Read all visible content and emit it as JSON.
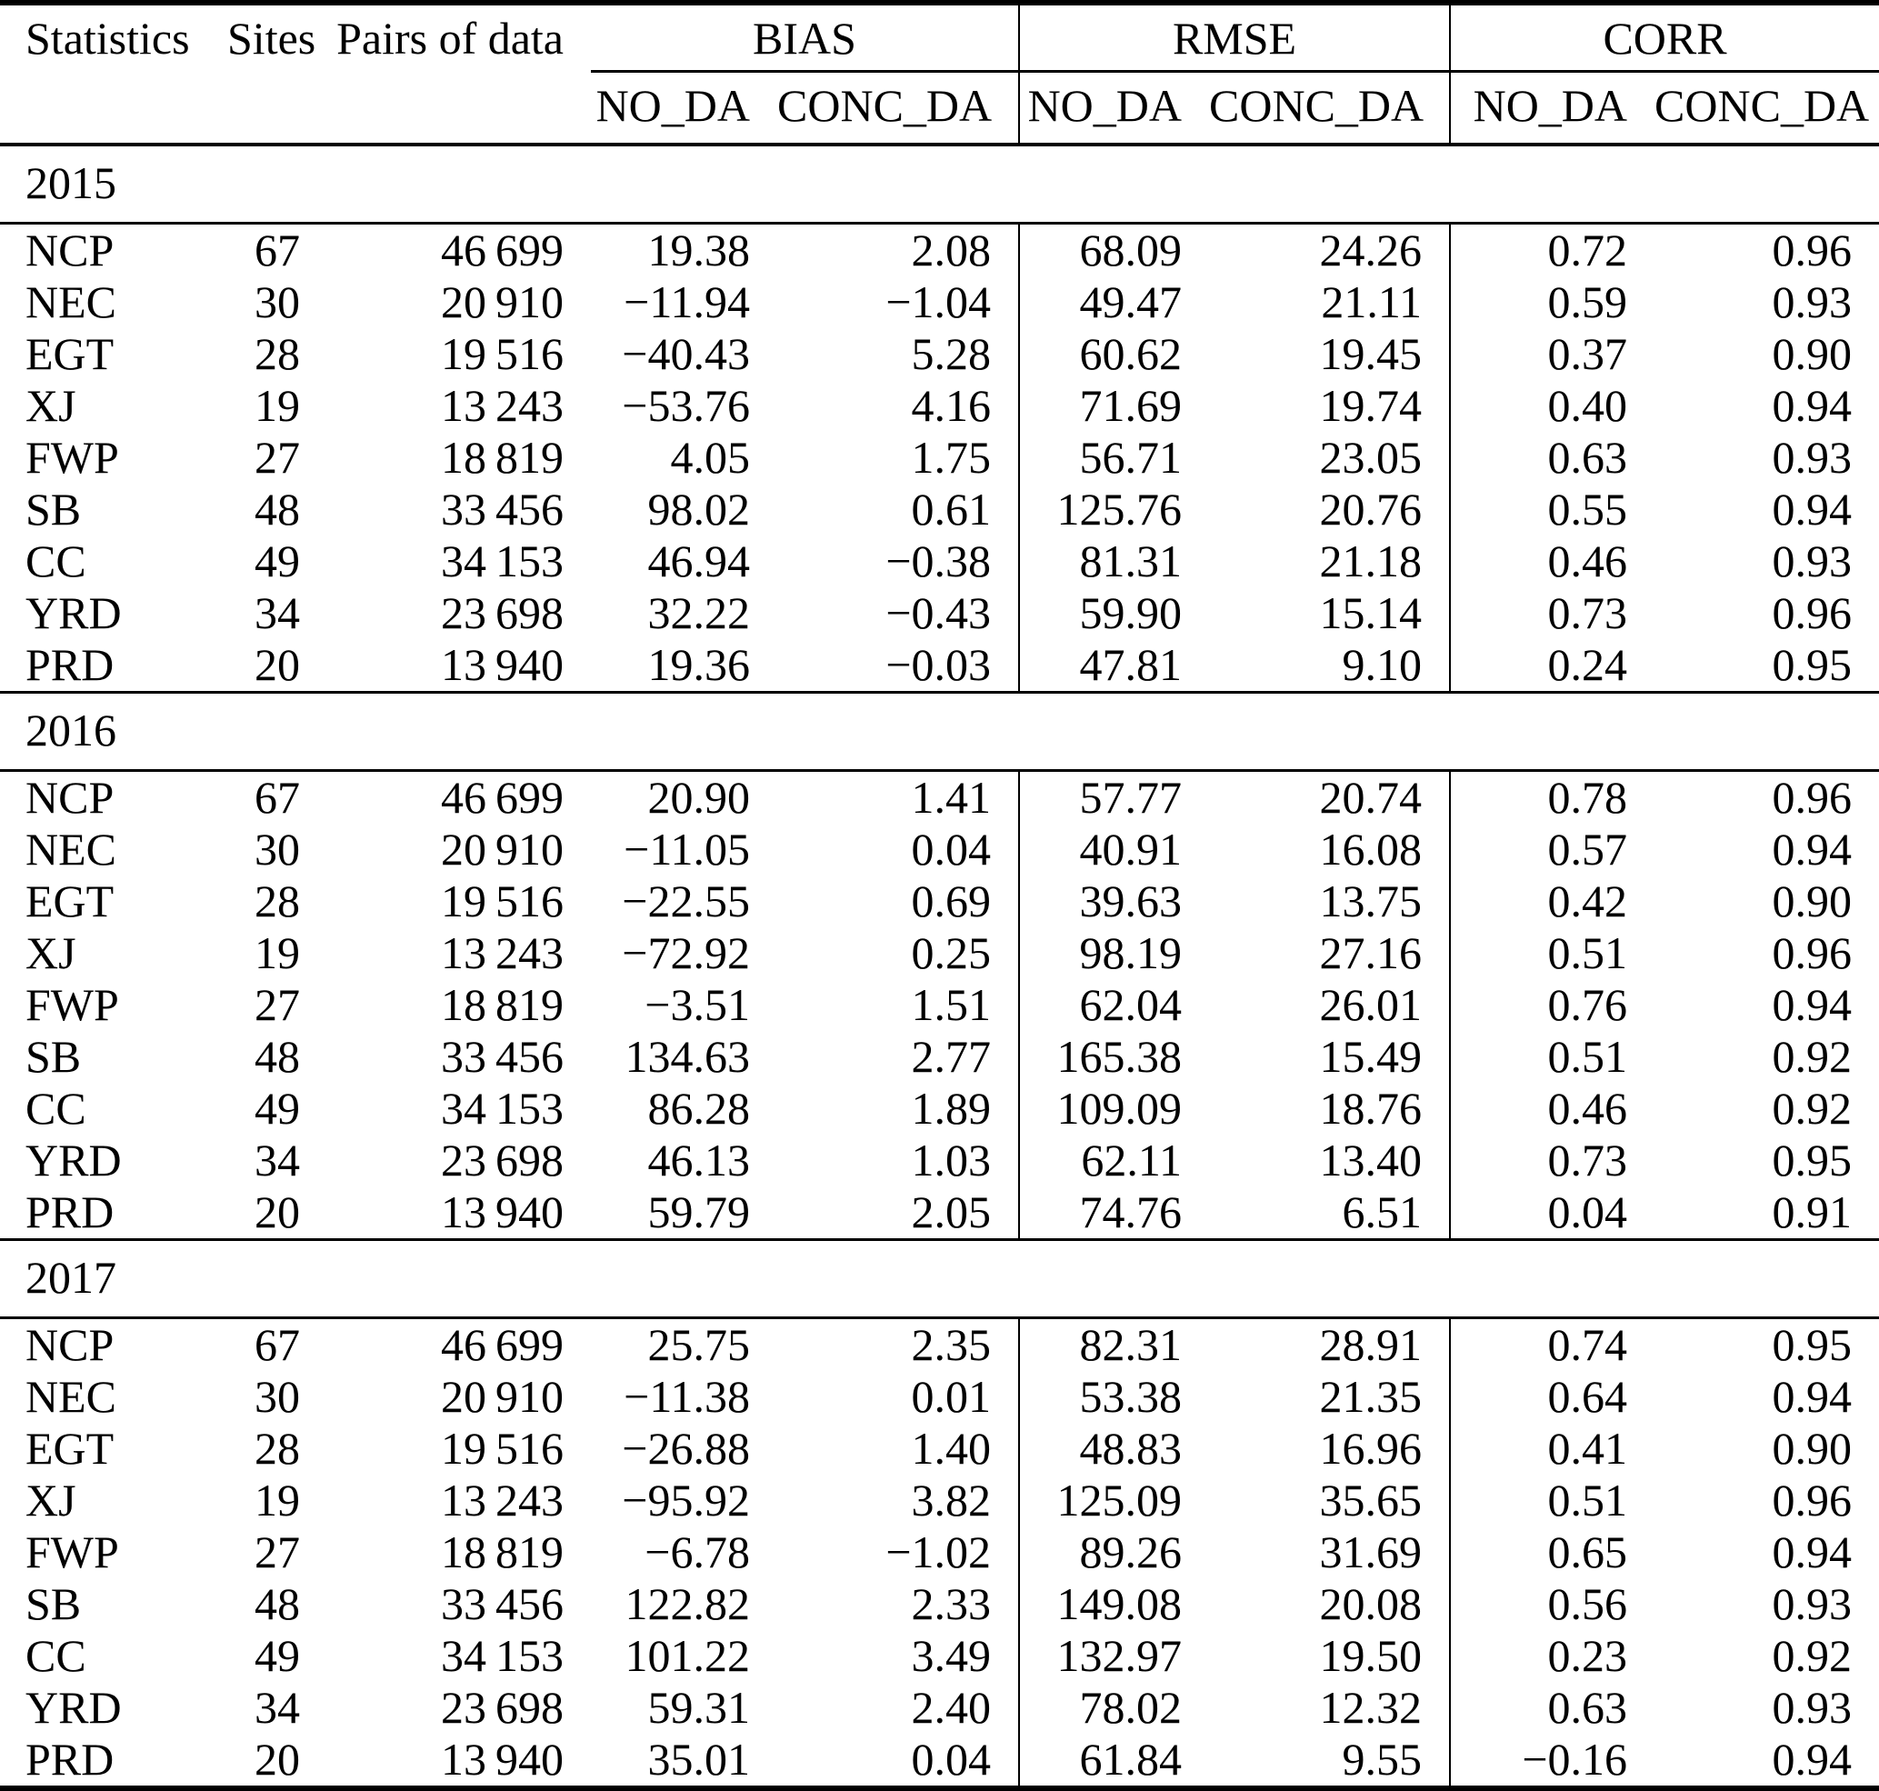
{
  "table": {
    "columns": {
      "statistics": "Statistics",
      "sites": "Sites",
      "pairs": "Pairs of data"
    },
    "groups": [
      {
        "label": "BIAS",
        "sub": [
          "NO_DA",
          "CONC_DA"
        ]
      },
      {
        "label": "RMSE",
        "sub": [
          "NO_DA",
          "CONC_DA"
        ]
      },
      {
        "label": "CORR",
        "sub": [
          "NO_DA",
          "CONC_DA"
        ]
      }
    ],
    "sections": [
      {
        "year": "2015",
        "rows": [
          {
            "site": "NCP",
            "sites": "67",
            "pairs": "46 699",
            "values": [
              "19.38",
              "2.08",
              "68.09",
              "24.26",
              "0.72",
              "0.96"
            ]
          },
          {
            "site": "NEC",
            "sites": "30",
            "pairs": "20 910",
            "values": [
              "−11.94",
              "−1.04",
              "49.47",
              "21.11",
              "0.59",
              "0.93"
            ]
          },
          {
            "site": "EGT",
            "sites": "28",
            "pairs": "19 516",
            "values": [
              "−40.43",
              "5.28",
              "60.62",
              "19.45",
              "0.37",
              "0.90"
            ]
          },
          {
            "site": "XJ",
            "sites": "19",
            "pairs": "13 243",
            "values": [
              "−53.76",
              "4.16",
              "71.69",
              "19.74",
              "0.40",
              "0.94"
            ]
          },
          {
            "site": "FWP",
            "sites": "27",
            "pairs": "18 819",
            "values": [
              "4.05",
              "1.75",
              "56.71",
              "23.05",
              "0.63",
              "0.93"
            ]
          },
          {
            "site": "SB",
            "sites": "48",
            "pairs": "33 456",
            "values": [
              "98.02",
              "0.61",
              "125.76",
              "20.76",
              "0.55",
              "0.94"
            ]
          },
          {
            "site": "CC",
            "sites": "49",
            "pairs": "34 153",
            "values": [
              "46.94",
              "−0.38",
              "81.31",
              "21.18",
              "0.46",
              "0.93"
            ]
          },
          {
            "site": "YRD",
            "sites": "34",
            "pairs": "23 698",
            "values": [
              "32.22",
              "−0.43",
              "59.90",
              "15.14",
              "0.73",
              "0.96"
            ]
          },
          {
            "site": "PRD",
            "sites": "20",
            "pairs": "13 940",
            "values": [
              "19.36",
              "−0.03",
              "47.81",
              "9.10",
              "0.24",
              "0.95"
            ]
          }
        ]
      },
      {
        "year": "2016",
        "rows": [
          {
            "site": "NCP",
            "sites": "67",
            "pairs": "46 699",
            "values": [
              "20.90",
              "1.41",
              "57.77",
              "20.74",
              "0.78",
              "0.96"
            ]
          },
          {
            "site": "NEC",
            "sites": "30",
            "pairs": "20 910",
            "values": [
              "−11.05",
              "0.04",
              "40.91",
              "16.08",
              "0.57",
              "0.94"
            ]
          },
          {
            "site": "EGT",
            "sites": "28",
            "pairs": "19 516",
            "values": [
              "−22.55",
              "0.69",
              "39.63",
              "13.75",
              "0.42",
              "0.90"
            ]
          },
          {
            "site": "XJ",
            "sites": "19",
            "pairs": "13 243",
            "values": [
              "−72.92",
              "0.25",
              "98.19",
              "27.16",
              "0.51",
              "0.96"
            ]
          },
          {
            "site": "FWP",
            "sites": "27",
            "pairs": "18 819",
            "values": [
              "−3.51",
              "1.51",
              "62.04",
              "26.01",
              "0.76",
              "0.94"
            ]
          },
          {
            "site": "SB",
            "sites": "48",
            "pairs": "33 456",
            "values": [
              "134.63",
              "2.77",
              "165.38",
              "15.49",
              "0.51",
              "0.92"
            ]
          },
          {
            "site": "CC",
            "sites": "49",
            "pairs": "34 153",
            "values": [
              "86.28",
              "1.89",
              "109.09",
              "18.76",
              "0.46",
              "0.92"
            ]
          },
          {
            "site": "YRD",
            "sites": "34",
            "pairs": "23 698",
            "values": [
              "46.13",
              "1.03",
              "62.11",
              "13.40",
              "0.73",
              "0.95"
            ]
          },
          {
            "site": "PRD",
            "sites": "20",
            "pairs": "13 940",
            "values": [
              "59.79",
              "2.05",
              "74.76",
              "6.51",
              "0.04",
              "0.91"
            ]
          }
        ]
      },
      {
        "year": "2017",
        "rows": [
          {
            "site": "NCP",
            "sites": "67",
            "pairs": "46 699",
            "values": [
              "25.75",
              "2.35",
              "82.31",
              "28.91",
              "0.74",
              "0.95"
            ]
          },
          {
            "site": "NEC",
            "sites": "30",
            "pairs": "20 910",
            "values": [
              "−11.38",
              "0.01",
              "53.38",
              "21.35",
              "0.64",
              "0.94"
            ]
          },
          {
            "site": "EGT",
            "sites": "28",
            "pairs": "19 516",
            "values": [
              "−26.88",
              "1.40",
              "48.83",
              "16.96",
              "0.41",
              "0.90"
            ]
          },
          {
            "site": "XJ",
            "sites": "19",
            "pairs": "13 243",
            "values": [
              "−95.92",
              "3.82",
              "125.09",
              "35.65",
              "0.51",
              "0.96"
            ]
          },
          {
            "site": "FWP",
            "sites": "27",
            "pairs": "18 819",
            "values": [
              "−6.78",
              "−1.02",
              "89.26",
              "31.69",
              "0.65",
              "0.94"
            ]
          },
          {
            "site": "SB",
            "sites": "48",
            "pairs": "33 456",
            "values": [
              "122.82",
              "2.33",
              "149.08",
              "20.08",
              "0.56",
              "0.93"
            ]
          },
          {
            "site": "CC",
            "sites": "49",
            "pairs": "34 153",
            "values": [
              "101.22",
              "3.49",
              "132.97",
              "19.50",
              "0.23",
              "0.92"
            ]
          },
          {
            "site": "YRD",
            "sites": "34",
            "pairs": "23 698",
            "values": [
              "59.31",
              "2.40",
              "78.02",
              "12.32",
              "0.63",
              "0.93"
            ]
          },
          {
            "site": "PRD",
            "sites": "20",
            "pairs": "13 940",
            "values": [
              "35.01",
              "0.04",
              "61.84",
              "9.55",
              "−0.16",
              "0.94"
            ]
          }
        ]
      }
    ]
  }
}
